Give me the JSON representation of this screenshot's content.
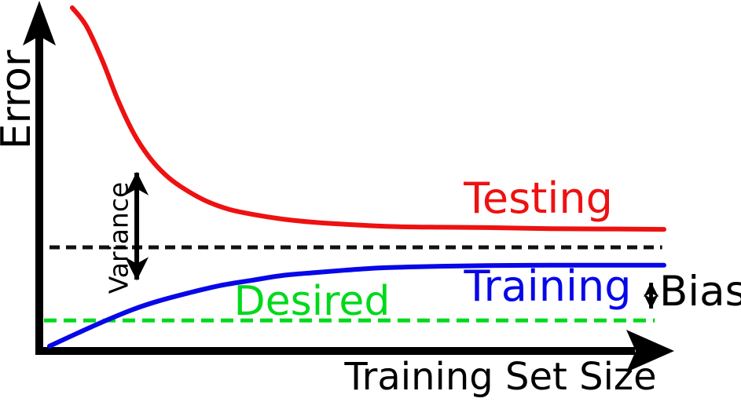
{
  "figure": {
    "background": "#ffffff",
    "axis_color": "#000000",
    "annotation_arrow_color": "#000000"
  },
  "labels": {
    "y_axis": "Error",
    "x_axis": "Training Set Size",
    "testing": "Testing",
    "training": "Training",
    "desired": "Desired",
    "variance": "Variance",
    "bias": "Bias"
  },
  "colors": {
    "testing": "#ee1111",
    "training": "#0707e8",
    "desired": "#00d91b",
    "convergence": "#111111"
  },
  "chart_data": {
    "type": "line",
    "title": "",
    "xlabel": "Training Set Size",
    "ylabel": "Error",
    "x_range": [
      0,
      1
    ],
    "y_range": [
      0,
      1
    ],
    "numeric_ticks": false,
    "grid": false,
    "legend_position": "inline-curve-labels",
    "series": [
      {
        "name": "Testing",
        "color": "#ee1111",
        "points": [
          [
            0.037,
            0.978
          ],
          [
            0.06,
            0.926
          ],
          [
            0.086,
            0.828
          ],
          [
            0.111,
            0.717
          ],
          [
            0.137,
            0.621
          ],
          [
            0.162,
            0.554
          ],
          [
            0.188,
            0.504
          ],
          [
            0.214,
            0.469
          ],
          [
            0.252,
            0.431
          ],
          [
            0.29,
            0.406
          ],
          [
            0.329,
            0.391
          ],
          [
            0.38,
            0.377
          ],
          [
            0.431,
            0.368
          ],
          [
            0.495,
            0.361
          ],
          [
            0.559,
            0.356
          ],
          [
            0.636,
            0.354
          ],
          [
            0.712,
            0.353
          ],
          [
            0.815,
            0.35
          ],
          [
            0.917,
            0.349
          ],
          [
            1.0,
            0.348
          ]
        ]
      },
      {
        "name": "Training",
        "color": "#0707e8",
        "points": [
          [
            0.0,
            0.016
          ],
          [
            0.047,
            0.054
          ],
          [
            0.092,
            0.089
          ],
          [
            0.137,
            0.121
          ],
          [
            0.175,
            0.143
          ],
          [
            0.226,
            0.167
          ],
          [
            0.277,
            0.188
          ],
          [
            0.329,
            0.203
          ],
          [
            0.38,
            0.217
          ],
          [
            0.431,
            0.225
          ],
          [
            0.482,
            0.232
          ],
          [
            0.533,
            0.238
          ],
          [
            0.584,
            0.241
          ],
          [
            0.636,
            0.243
          ],
          [
            0.712,
            0.245
          ],
          [
            0.815,
            0.246
          ],
          [
            0.917,
            0.246
          ],
          [
            1.0,
            0.246
          ]
        ]
      }
    ],
    "reference_lines": [
      {
        "name": "convergence-level",
        "color": "#111111",
        "style": "dashed",
        "dash": [
          13,
          8
        ],
        "y": 0.297,
        "x_from": 0.0,
        "x_to": 0.997
      },
      {
        "name": "desired-level",
        "color": "#00d91b",
        "style": "dashed",
        "dash": [
          16,
          9
        ],
        "y": 0.089,
        "x_from": -0.009,
        "x_to": 0.985
      }
    ],
    "annotations": [
      {
        "name": "variance-gap",
        "label": "Variance",
        "type": "vertical-double-arrow",
        "x": 0.142,
        "y_from": 0.576,
        "y_to": 0.138,
        "head": "lg"
      },
      {
        "name": "bias-gap",
        "label": "Bias",
        "type": "vertical-double-arrow",
        "x": 0.979,
        "y_from": 0.234,
        "y_to": 0.085,
        "head": "sm"
      }
    ]
  }
}
